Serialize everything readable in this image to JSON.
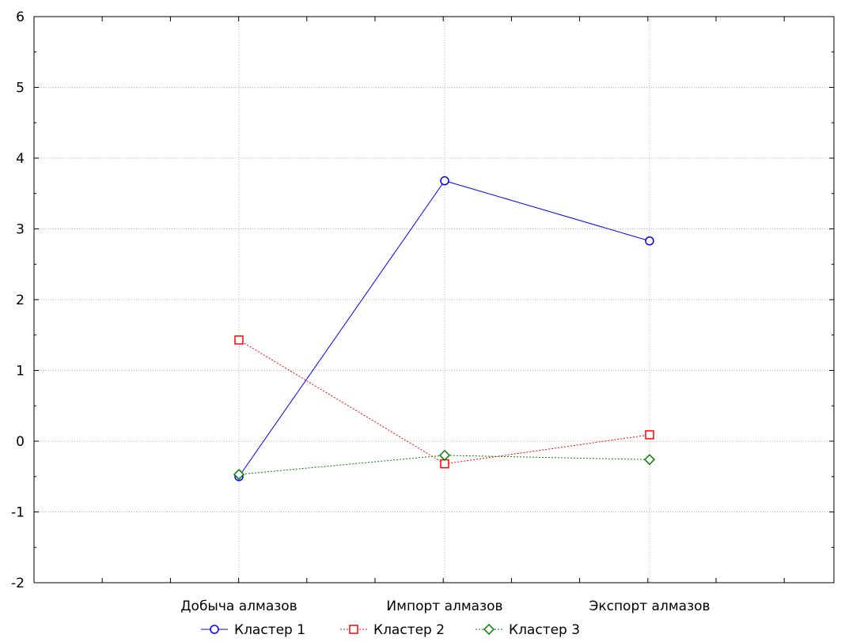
{
  "chart_data": {
    "type": "line",
    "categories": [
      "Добыча алмазов",
      "Импорт алмазов",
      "Экспорт алмазов"
    ],
    "ylim": [
      -2,
      6
    ],
    "yticks": [
      -2,
      -1,
      0,
      1,
      2,
      3,
      4,
      5,
      6
    ],
    "grid": true,
    "legend_position": "bottom",
    "series": [
      {
        "name": "Кластер 1",
        "values": [
          -0.5,
          3.68,
          2.83
        ],
        "color": "#0000ff",
        "marker": "circle",
        "dash": "solid"
      },
      {
        "name": "Кластер 2",
        "values": [
          1.43,
          -0.32,
          0.09
        ],
        "color": "#ff0000",
        "marker": "square",
        "dash": "dotted"
      },
      {
        "name": "Кластер 3",
        "values": [
          -0.47,
          -0.2,
          -0.26
        ],
        "color": "#008000",
        "marker": "diamond",
        "dash": "dotted"
      }
    ]
  }
}
